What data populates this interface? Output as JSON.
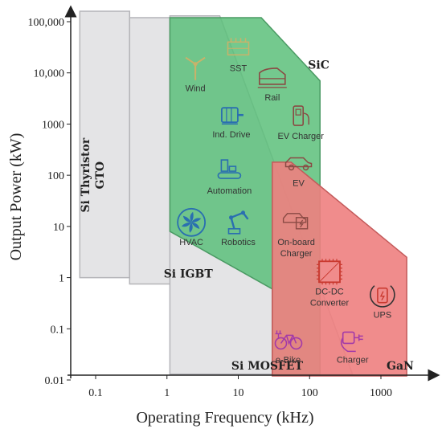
{
  "chart_data": {
    "type": "area",
    "xlabel": "Operating Frequency (kHz)",
    "ylabel": "Output Power (kW)",
    "x_scale": "log",
    "y_scale": "log",
    "xlim": [
      0.05,
      2500
    ],
    "ylim": [
      0.01,
      100000
    ],
    "x_ticks": [
      {
        "value": 0.1,
        "label": "0.1"
      },
      {
        "value": 1,
        "label": "1"
      },
      {
        "value": 10,
        "label": "10"
      },
      {
        "value": 100,
        "label": "100"
      },
      {
        "value": 1000,
        "label": "1000"
      }
    ],
    "y_ticks": [
      {
        "value": 0.01,
        "label": "0.01"
      },
      {
        "value": 0.1,
        "label": "0.1"
      },
      {
        "value": 1,
        "label": "1"
      },
      {
        "value": 10,
        "label": "10"
      },
      {
        "value": 100,
        "label": "100"
      },
      {
        "value": 1000,
        "label": "1000"
      },
      {
        "value": 10000,
        "label": "10,000"
      },
      {
        "value": 100000,
        "label": "100,000"
      }
    ],
    "grid": false,
    "regions": [
      {
        "name": "Si Thyristor GTO",
        "label_lines": [
          "Si Thyristor",
          "GTO"
        ],
        "color": "#e4e4e6",
        "edge": "#b4b4b8",
        "opacity": 1,
        "points": [
          [
            0.06,
            160000
          ],
          [
            0.3,
            160000
          ],
          [
            0.3,
            1
          ],
          [
            0.06,
            1
          ]
        ],
        "label_at": [
          0.1,
          100
        ],
        "label_rotate": -90
      },
      {
        "name": "Si IGBT",
        "label_lines": [
          "Si IGBT"
        ],
        "color": "#e4e4e6",
        "edge": "#b4b4b8",
        "opacity": 1,
        "points": [
          [
            0.3,
            120000
          ],
          [
            5.5,
            120000
          ],
          [
            20,
            250
          ],
          [
            20,
            0.75
          ],
          [
            0.3,
            0.75
          ]
        ],
        "label_at": [
          0.9,
          1
        ]
      },
      {
        "name": "Si MOSFET",
        "label_lines": [
          "Si MOSFET"
        ],
        "color": "#e4e4e6",
        "edge": "#b4b4b8",
        "opacity": 1,
        "points": [
          [
            1.1,
            130000
          ],
          [
            5.5,
            130000
          ],
          [
            400,
            0.013
          ],
          [
            1.1,
            0.013
          ]
        ],
        "label_at": [
          8,
          0.016
        ]
      },
      {
        "name": "SiC",
        "label_lines": [
          "SiC"
        ],
        "color": "#5cbf7a",
        "edge": "#4a9a63",
        "opacity": 0.85,
        "points": [
          [
            1.1,
            120000
          ],
          [
            21,
            120000
          ],
          [
            140,
            7000
          ],
          [
            140,
            0.013
          ],
          [
            30,
            0.013
          ],
          [
            30,
            0.6
          ],
          [
            1.1,
            8
          ]
        ],
        "label_at": [
          95,
          12000
        ]
      },
      {
        "name": "GaN",
        "label_lines": [
          "GaN"
        ],
        "color": "#ee7f7f",
        "edge": "#c35a5a",
        "opacity": 0.9,
        "points": [
          [
            30,
            180
          ],
          [
            55,
            180
          ],
          [
            2300,
            2.5
          ],
          [
            2300,
            0.012
          ],
          [
            30,
            0.012
          ]
        ],
        "label_at": [
          1200,
          0.016
        ]
      }
    ],
    "applications": [
      {
        "label": "SST",
        "icon": "transformer-icon",
        "x": 10,
        "y": 30000,
        "color": "#c9b26a"
      },
      {
        "label": "Wind",
        "icon": "wind-turbine-icon",
        "x": 2.5,
        "y": 12000,
        "color": "#c9b26a"
      },
      {
        "label": "Rail",
        "icon": "train-icon",
        "x": 30,
        "y": 8000,
        "color": "#8a4a44"
      },
      {
        "label": "Ind. Drive",
        "icon": "motor-icon",
        "x": 8,
        "y": 1500,
        "color": "#2a6fb0"
      },
      {
        "label": "EV Charger",
        "icon": "ev-charger-icon",
        "x": 75,
        "y": 1400,
        "color": "#8a4a44"
      },
      {
        "label": "EV",
        "icon": "car-icon",
        "x": 70,
        "y": 170,
        "color": "#8a4a44"
      },
      {
        "label": "Automation",
        "icon": "conveyor-icon",
        "x": 7.5,
        "y": 120,
        "color": "#2a6fb0"
      },
      {
        "label": "HVAC",
        "icon": "fan-icon",
        "x": 2.2,
        "y": 12,
        "color": "#2a6fb0"
      },
      {
        "label": "Robotics",
        "icon": "robot-arm-icon",
        "x": 10,
        "y": 12,
        "color": "#2a6fb0"
      },
      {
        "label": "On-board Charger",
        "label_lines": [
          "On-board",
          "Charger"
        ],
        "icon": "onboard-charger-icon",
        "x": 65,
        "y": 12,
        "color": "#8a4a44"
      },
      {
        "label": "DC-DC Converter",
        "label_lines": [
          "DC-DC",
          "Converter"
        ],
        "icon": "dc-dc-chip-icon",
        "x": 190,
        "y": 1.3,
        "color": "#c9392f"
      },
      {
        "label": "UPS",
        "icon": "battery-icon",
        "x": 1050,
        "y": 0.45,
        "color": "#c9392f"
      },
      {
        "label": "e-Bike",
        "icon": "bicycle-icon",
        "x": 50,
        "y": 0.06,
        "color": "#a33aa8"
      },
      {
        "label": "Charger",
        "icon": "plug-charger-icon",
        "x": 400,
        "y": 0.06,
        "color": "#a33aa8"
      }
    ]
  }
}
